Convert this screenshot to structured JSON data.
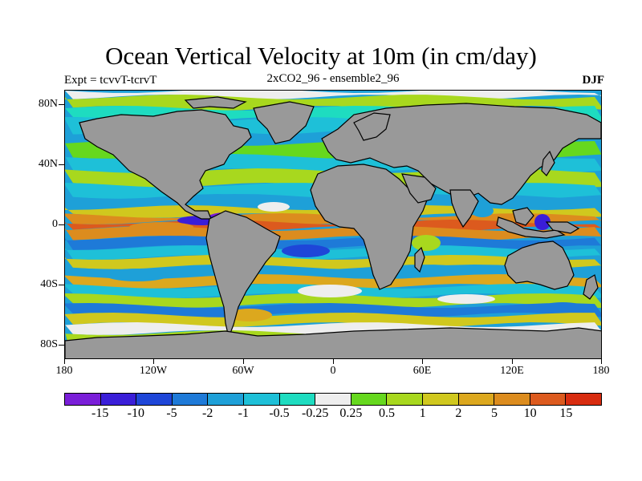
{
  "title": "Ocean Vertical Velocity at 10m (in cm/day)",
  "left_string": "Expt = tcvvT-tcrvT",
  "center_string": "2xCO2_96 - ensemble2_96",
  "right_string": "DJF",
  "lat_labels": [
    "80N",
    "40N",
    "0",
    "40S",
    "80S"
  ],
  "lon_labels": [
    "180",
    "120W",
    "60W",
    "0",
    "60E",
    "120E",
    "180"
  ],
  "land_color": "#999999",
  "colorbar": {
    "colors": [
      "#7a1ed8",
      "#3a1ed8",
      "#1e46d8",
      "#1e7ad8",
      "#1ea0d8",
      "#1ec0d8",
      "#1edcc0",
      "#eeeeee",
      "#66d81e",
      "#a8d81e",
      "#d0c81e",
      "#dca81e",
      "#dc8c1e",
      "#dc5a1e",
      "#d82c10"
    ],
    "labels": [
      "-15",
      "-10",
      "-5",
      "-2",
      "-1",
      "-0.5",
      "-0.25",
      "0.25",
      "0.5",
      "1",
      "2",
      "5",
      "10",
      "15"
    ]
  }
}
